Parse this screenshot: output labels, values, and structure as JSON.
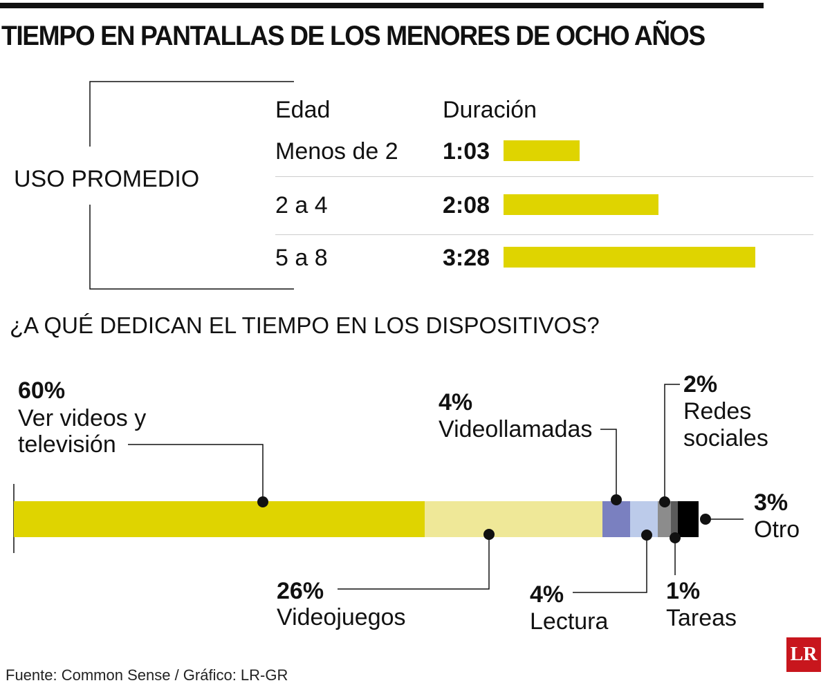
{
  "title": "TIEMPO EN PANTALLAS DE LOS MENORES DE OCHO AÑOS",
  "chart_data": [
    {
      "type": "bar",
      "title": "USO PROMEDIO",
      "column_headers": [
        "Edad",
        "Duración"
      ],
      "categories": [
        "Menos de 2",
        "2 a 4",
        "5 a 8"
      ],
      "labels": [
        "1:03",
        "2:08",
        "3:28"
      ],
      "values_minutes": [
        63,
        128,
        208
      ],
      "color": "#dfd400"
    },
    {
      "type": "bar",
      "subtype": "stacked-100",
      "title": "¿A QUÉ DEDICAN EL TIEMPO EN LOS DISPOSITIVOS?",
      "segments": [
        {
          "label": "Ver videos y televisión",
          "value": 60,
          "pct": "60%",
          "color": "#dfd400"
        },
        {
          "label": "Videojuegos",
          "value": 26,
          "pct": "26%",
          "color": "#efe898"
        },
        {
          "label": "Videollamadas",
          "value": 4,
          "pct": "4%",
          "color": "#7a80c0"
        },
        {
          "label": "Lectura",
          "value": 4,
          "pct": "4%",
          "color": "#bccbea"
        },
        {
          "label": "Redes sociales",
          "value": 2,
          "pct": "2%",
          "color": "#8c8c8c"
        },
        {
          "label": "Tareas",
          "value": 1,
          "pct": "1%",
          "color": "#5a5a5a"
        },
        {
          "label": "Otro",
          "value": 3,
          "pct": "3%",
          "color": "#000000"
        }
      ]
    }
  ],
  "footer": "Fuente: Common Sense / Gráfico: LR-GR",
  "logo": "LR"
}
